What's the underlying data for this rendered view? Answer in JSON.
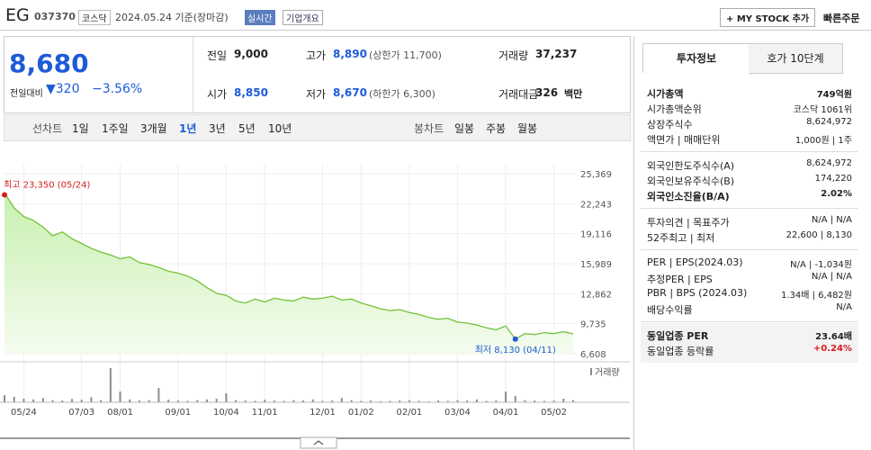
{
  "header": {
    "name": "EG",
    "code": "037370",
    "market": "코스닥",
    "date": "2024.05.24 기준(장마감)",
    "realtime": "실시간",
    "overview": "기업개요",
    "mystock": "+ MY STOCK 추가",
    "quick_order": "빠른주문"
  },
  "quote": {
    "price": "8,680",
    "change_label": "전일대비",
    "change": "▼320",
    "change_rate": "−3.56%",
    "cells": [
      [
        "전일",
        "9,000",
        ""
      ],
      [
        "고가",
        "8,890",
        "(상한가 11,700)"
      ],
      [
        "거래량",
        "37,237",
        ""
      ],
      [
        "시가",
        "8,850",
        ""
      ],
      [
        "저가",
        "8,670",
        "(하한가 6,300)"
      ],
      [
        "거래대금",
        "326",
        "백만"
      ]
    ]
  },
  "periods": {
    "line_label": "선차트",
    "line": [
      "1일",
      "1주일",
      "3개월",
      "1년",
      "3년",
      "5년",
      "10년"
    ],
    "selected": "1년",
    "candle_label": "봉차트",
    "candle": [
      "일봉",
      "주봉",
      "월봉"
    ]
  },
  "chart_data": {
    "type": "line",
    "color": "#73c23a",
    "values": [
      23350,
      21800,
      20900,
      20500,
      19800,
      18900,
      19300,
      18600,
      18100,
      17600,
      17200,
      16900,
      16500,
      16700,
      16100,
      15900,
      15600,
      15200,
      15000,
      14700,
      14200,
      13500,
      12900,
      12700,
      12100,
      11900,
      12300,
      12000,
      12400,
      12200,
      12100,
      12500,
      12300,
      12400,
      12600,
      12200,
      12300,
      11900,
      11600,
      11300,
      11100,
      11200,
      10900,
      10700,
      10400,
      10200,
      10300,
      9900,
      9800,
      9600,
      9300,
      9100,
      9500,
      8130,
      8700,
      8600,
      8800,
      8700,
      8900,
      8680
    ],
    "ylim": [
      6608,
      25369
    ],
    "yticks": [
      {
        "value": 6608,
        "label": "6,608"
      },
      {
        "value": 9735,
        "label": "9,735"
      },
      {
        "value": 12862,
        "label": "12,862"
      },
      {
        "value": 15989,
        "label": "15,989"
      },
      {
        "value": 19116,
        "label": "19,116"
      },
      {
        "value": 22243,
        "label": "22,243"
      },
      {
        "value": 25369,
        "label": "25,369"
      }
    ],
    "xticks": [
      {
        "value": 2,
        "label": "05/24"
      },
      {
        "value": 8,
        "label": "07/03"
      },
      {
        "value": 12,
        "label": "08/01"
      },
      {
        "value": 18,
        "label": "09/01"
      },
      {
        "value": 23,
        "label": "10/04"
      },
      {
        "value": 27,
        "label": "11/01"
      },
      {
        "value": 33,
        "label": "12/01"
      },
      {
        "value": 37,
        "label": "01/02"
      },
      {
        "value": 42,
        "label": "02/01"
      },
      {
        "value": 47,
        "label": "03/04"
      },
      {
        "value": 52,
        "label": "04/01"
      },
      {
        "value": 57,
        "label": "05/02"
      }
    ],
    "annotations": [
      {
        "text": "최고 23,350 (05/24)",
        "index": 0,
        "color": "#d91c1c"
      },
      {
        "text": "최저 8,130 (04/11)",
        "index": 53,
        "color": "#1e5bd8"
      }
    ],
    "volume": {
      "name": "거래량",
      "color": "#8c8c8c",
      "ylim": [
        0,
        100
      ],
      "values": [
        20,
        15,
        10,
        8,
        12,
        6,
        5,
        9,
        7,
        14,
        6,
        95,
        30,
        8,
        5,
        6,
        40,
        7,
        5,
        4,
        6,
        8,
        10,
        25,
        6,
        5,
        4,
        7,
        5,
        4,
        6,
        5,
        8,
        4,
        5,
        12,
        6,
        4,
        5,
        3,
        4,
        5,
        6,
        4,
        3,
        5,
        4,
        6,
        5,
        8,
        4,
        5,
        30,
        18,
        6,
        5,
        4,
        5,
        10,
        6
      ]
    }
  },
  "tabs": [
    "투자정보",
    "호가 10단계"
  ],
  "info": [
    [
      [
        "시가총액",
        "749억원"
      ],
      [
        "시가총액순위",
        "코스닥 1061위"
      ],
      [
        "상장주식수",
        "8,624,972"
      ],
      [
        "액면가 | 매매단위",
        "1,000원 | 1주"
      ]
    ],
    [
      [
        "외국인한도주식수(A)",
        "8,624,972"
      ],
      [
        "외국인보유주식수(B)",
        "174,220"
      ],
      [
        "외국인소진율(B/A)",
        "2.02%"
      ]
    ],
    [
      [
        "투자의견 | 목표주가",
        "N/A | N/A"
      ],
      [
        "52주최고 | 최저",
        "22,600 | 8,130"
      ]
    ],
    [
      [
        "PER | EPS(2024.03)",
        "N/A | -1,034원"
      ],
      [
        "추정PER | EPS",
        "N/A | N/A"
      ],
      [
        "PBR | BPS (2024.03)",
        "1.34배 | 6,482원"
      ],
      [
        "배당수익률",
        "N/A"
      ]
    ],
    [
      [
        "동일업종 PER",
        "23.64배"
      ],
      [
        "동일업종 등락률",
        "+0.24%"
      ]
    ]
  ]
}
